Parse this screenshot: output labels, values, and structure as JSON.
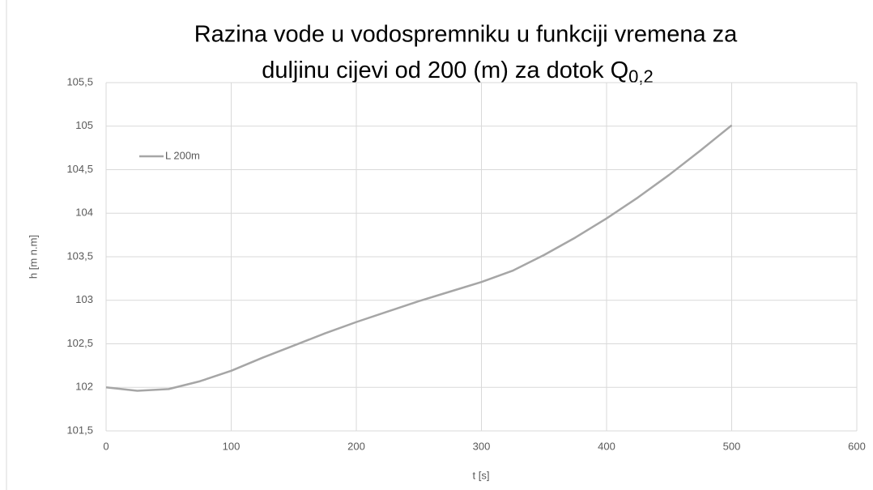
{
  "chart_data": {
    "type": "line",
    "title": [
      "Razina vode u vodospremniku u funkciji vremena za",
      "duljinu cijevi od 200 (m) za dotok Q"
    ],
    "title_subscript": "0,2",
    "xlabel": "t [s]",
    "ylabel": "h [m n.m]",
    "x": [
      0,
      25,
      50,
      75,
      100,
      125,
      150,
      175,
      200,
      225,
      250,
      275,
      300,
      325,
      350,
      375,
      400,
      425,
      450,
      475,
      500
    ],
    "series": [
      {
        "name": "L 200m",
        "color": "#a6a6a6",
        "values": [
          102.0,
          101.96,
          101.98,
          102.07,
          102.19,
          102.34,
          102.48,
          102.62,
          102.75,
          102.87,
          102.99,
          103.1,
          103.21,
          103.34,
          103.52,
          103.72,
          103.94,
          104.18,
          104.44,
          104.72,
          105.01
        ]
      }
    ],
    "xlim": [
      0,
      600
    ],
    "xticks": [
      0,
      100,
      200,
      300,
      400,
      500,
      600
    ],
    "ylim": [
      101.5,
      105.5
    ],
    "yticks": [
      {
        "value": 101.5,
        "label": "101,5"
      },
      102,
      {
        "value": 102.5,
        "label": "102,5"
      },
      103,
      {
        "value": 103.5,
        "label": "103,5"
      },
      104,
      {
        "value": 104.5,
        "label": "104,5"
      },
      105,
      {
        "value": 105.5,
        "label": "105,5"
      }
    ],
    "grid": true,
    "legend": "upper left"
  }
}
